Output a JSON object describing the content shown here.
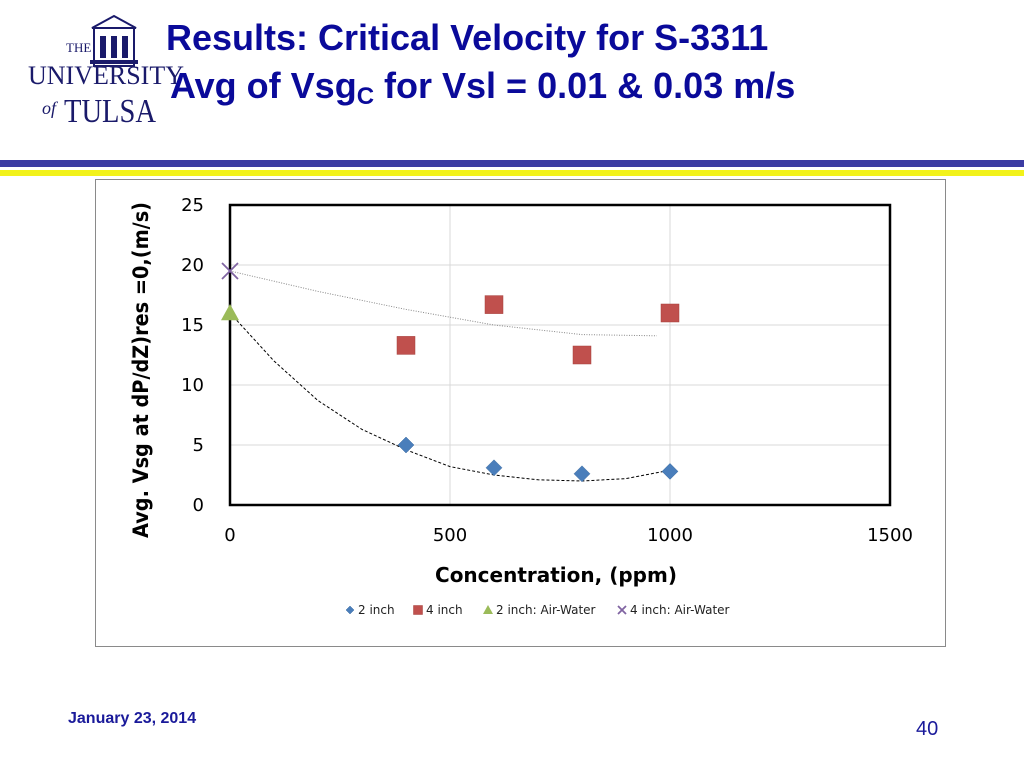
{
  "header": {
    "logo": {
      "line_the": "THE",
      "line_university": "UNIVERSITY",
      "line_of": "of",
      "line_tulsa": "TULSA"
    },
    "title_line1": "Results: Critical Velocity for S-3311",
    "title_line2_prefix": "Avg of Vsg",
    "title_line2_sub": "C",
    "title_line2_suffix": " for Vsl = 0.01 & 0.03 m/s"
  },
  "colors": {
    "title": "#0a0a9a",
    "rule_blue": "#3b3ba3",
    "rule_yellow": "#f2f21a",
    "series_2inch": "#4a7ebb",
    "series_4inch": "#c0504d",
    "series_2inch_air_water": "#9bbb59",
    "series_4inch_air_water": "#8064a2"
  },
  "chart_data": {
    "type": "scatter",
    "title": "",
    "xlabel": "Concentration, (ppm)",
    "ylabel": "Avg. Vsg at dP/dZ)res =0,(m/s)",
    "xlim": [
      0,
      1500
    ],
    "ylim": [
      0,
      25
    ],
    "x_ticks": [
      "0",
      "500",
      "1000",
      "1500"
    ],
    "y_ticks": [
      "0",
      "5",
      "10",
      "15",
      "20",
      "25"
    ],
    "grid": true,
    "legend_position": "bottom",
    "series": [
      {
        "name": "2 inch",
        "marker": "diamond",
        "color": "#4a7ebb",
        "points": [
          [
            400,
            5.0
          ],
          [
            600,
            3.1
          ],
          [
            800,
            2.6
          ],
          [
            1000,
            2.8
          ]
        ]
      },
      {
        "name": "4 inch",
        "marker": "square",
        "color": "#c0504d",
        "points": [
          [
            400,
            13.3
          ],
          [
            600,
            16.7
          ],
          [
            800,
            12.5
          ],
          [
            1000,
            16.0
          ]
        ]
      },
      {
        "name": "2 inch: Air-Water",
        "marker": "triangle",
        "color": "#9bbb59",
        "points": [
          [
            0,
            16.0
          ]
        ]
      },
      {
        "name": "4 inch: Air-Water",
        "marker": "cross",
        "color": "#8064a2",
        "points": [
          [
            0,
            19.5
          ]
        ]
      }
    ],
    "trendlines": [
      {
        "series": "2 inch",
        "style": "dashed",
        "points": [
          [
            0,
            16.0
          ],
          [
            100,
            12.0
          ],
          [
            200,
            8.7
          ],
          [
            300,
            6.3
          ],
          [
            400,
            4.6
          ],
          [
            500,
            3.2
          ],
          [
            600,
            2.5
          ],
          [
            700,
            2.1
          ],
          [
            800,
            2.0
          ],
          [
            900,
            2.2
          ],
          [
            1000,
            2.9
          ]
        ]
      },
      {
        "series": "4 inch",
        "style": "dotted",
        "points": [
          [
            0,
            19.5
          ],
          [
            200,
            17.8
          ],
          [
            400,
            16.3
          ],
          [
            600,
            15.0
          ],
          [
            800,
            14.2
          ],
          [
            970,
            14.1
          ]
        ]
      }
    ]
  },
  "footer": {
    "date": "January 23, 2014",
    "page": "40"
  }
}
